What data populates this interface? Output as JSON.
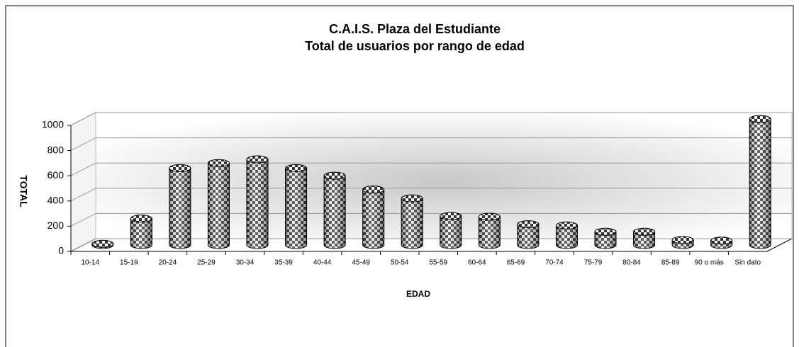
{
  "chart_data": {
    "type": "bar",
    "title": "C.A.I.S. Plaza del Estudiante",
    "subtitle": "Total de usuarios por rango de edad",
    "y_label": "TOTAL",
    "x_label": "EDAD",
    "categories": [
      "10-14",
      "15-19",
      "20-24",
      "25-29",
      "30-34",
      "35-39",
      "40-44",
      "45-49",
      "50-54",
      "55-59",
      "60-64",
      "65-69",
      "70-74",
      "75-79",
      "80-84",
      "85-89",
      "90 o más",
      "Sin dato"
    ],
    "values": [
      10,
      210,
      610,
      650,
      680,
      610,
      550,
      440,
      370,
      230,
      225,
      165,
      155,
      105,
      105,
      40,
      35,
      1000
    ],
    "color": "#555555",
    "ylim": [
      0,
      1000
    ],
    "yticks": [
      0,
      200,
      400,
      600,
      800,
      1000
    ],
    "grid": true
  }
}
